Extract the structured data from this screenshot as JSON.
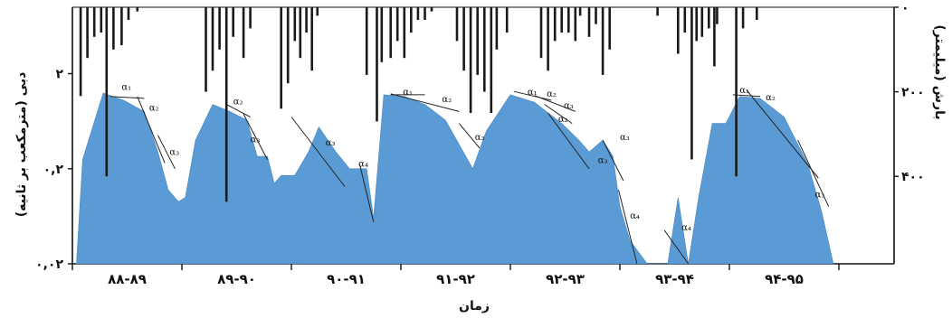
{
  "chart_data": {
    "type": "area",
    "x_axis": {
      "title": "زمان",
      "periods": [
        "۸۸-۸۹",
        "۸۹-۹۰",
        "۹۰-۹۱",
        "۹۱-۹۲",
        "۹۲-۹۳",
        "۹۳-۹۴",
        "۹۴-۹۵"
      ]
    },
    "y_left": {
      "title": "دبی (مترمکعب بر ثانیه)",
      "scale": "log",
      "ticks": [
        "۰,۰۲",
        "۰,۲",
        "۲"
      ],
      "tick_values": [
        0.02,
        0.2,
        2
      ],
      "range": [
        0.02,
        10
      ]
    },
    "y_right": {
      "title": "بارش (میلیمتر)",
      "inverted": true,
      "ticks": [
        "۰",
        "۲۰۰",
        "۴۰۰"
      ],
      "tick_values": [
        0,
        200,
        400
      ],
      "range": [
        0,
        600
      ]
    },
    "series": [
      {
        "kind": "discharge",
        "color": "#5b9bd5",
        "points": [
          [
            0.06,
            0.018
          ],
          [
            0.15,
            0.25
          ],
          [
            0.45,
            1.25
          ],
          [
            0.75,
            1.05
          ],
          [
            1.05,
            0.8
          ],
          [
            1.25,
            0.3
          ],
          [
            1.4,
            0.12
          ],
          [
            1.55,
            0.09
          ],
          [
            1.65,
            0.1
          ],
          [
            1.8,
            0.4
          ],
          [
            2.05,
            0.95
          ],
          [
            2.3,
            0.8
          ],
          [
            2.55,
            0.65
          ],
          [
            2.7,
            0.27
          ],
          [
            2.85,
            0.27
          ],
          [
            2.95,
            0.14
          ],
          [
            3.05,
            0.17
          ],
          [
            3.25,
            0.17
          ],
          [
            3.45,
            0.3
          ],
          [
            3.6,
            0.55
          ],
          [
            3.85,
            0.3
          ],
          [
            4.05,
            0.2
          ],
          [
            4.2,
            0.2
          ],
          [
            4.3,
            0.2
          ],
          [
            4.4,
            0.06
          ],
          [
            4.55,
            1.2
          ],
          [
            4.85,
            1.15
          ],
          [
            5.15,
            0.95
          ],
          [
            5.45,
            0.65
          ],
          [
            5.85,
            0.2
          ],
          [
            6.05,
            0.5
          ],
          [
            6.4,
            1.2
          ],
          [
            6.75,
            1.0
          ],
          [
            7.15,
            0.6
          ],
          [
            7.4,
            0.4
          ],
          [
            7.55,
            0.3
          ],
          [
            7.75,
            0.4
          ],
          [
            7.9,
            0.27
          ],
          [
            8.0,
            0.08
          ],
          [
            8.15,
            0.035
          ],
          [
            8.4,
            0.018
          ],
          [
            8.7,
            0.018
          ],
          [
            8.85,
            0.1
          ],
          [
            9.0,
            0.018
          ],
          [
            9.15,
            0.1
          ],
          [
            9.35,
            0.6
          ],
          [
            9.55,
            0.6
          ],
          [
            9.75,
            1.15
          ],
          [
            10.05,
            1.1
          ],
          [
            10.4,
            0.7
          ],
          [
            10.75,
            0.22
          ],
          [
            10.95,
            0.07
          ],
          [
            11.12,
            0.018
          ]
        ]
      },
      {
        "kind": "precipitation",
        "color": "#1a1a1a",
        "bars": [
          [
            0.12,
            210
          ],
          [
            0.22,
            120
          ],
          [
            0.32,
            70
          ],
          [
            0.42,
            60
          ],
          [
            0.5,
            400
          ],
          [
            0.6,
            100
          ],
          [
            0.72,
            90
          ],
          [
            0.82,
            30
          ],
          [
            0.95,
            10
          ],
          [
            1.95,
            200
          ],
          [
            2.05,
            150
          ],
          [
            2.15,
            100
          ],
          [
            2.25,
            460
          ],
          [
            2.35,
            70
          ],
          [
            2.5,
            120
          ],
          [
            2.6,
            50
          ],
          [
            3.05,
            240
          ],
          [
            3.15,
            180
          ],
          [
            3.25,
            80
          ],
          [
            3.33,
            120
          ],
          [
            3.42,
            60
          ],
          [
            3.5,
            150
          ],
          [
            3.58,
            20
          ],
          [
            4.3,
            160
          ],
          [
            4.45,
            270
          ],
          [
            4.52,
            130
          ],
          [
            4.65,
            120
          ],
          [
            4.75,
            80
          ],
          [
            4.85,
            120
          ],
          [
            4.95,
            60
          ],
          [
            5.05,
            30
          ],
          [
            5.15,
            30
          ],
          [
            5.25,
            10
          ],
          [
            5.62,
            80
          ],
          [
            5.72,
            150
          ],
          [
            5.82,
            250
          ],
          [
            5.92,
            160
          ],
          [
            6.02,
            200
          ],
          [
            6.12,
            250
          ],
          [
            6.2,
            100
          ],
          [
            6.35,
            60
          ],
          [
            6.85,
            120
          ],
          [
            6.95,
            150
          ],
          [
            7.05,
            80
          ],
          [
            7.15,
            60
          ],
          [
            7.25,
            60
          ],
          [
            7.35,
            80
          ],
          [
            7.42,
            20
          ],
          [
            7.55,
            70
          ],
          [
            7.65,
            40
          ],
          [
            7.75,
            160
          ],
          [
            7.85,
            100
          ],
          [
            8.55,
            20
          ],
          [
            8.85,
            110
          ],
          [
            8.95,
            60
          ],
          [
            9.05,
            360
          ],
          [
            9.12,
            80
          ],
          [
            9.2,
            70
          ],
          [
            9.3,
            50
          ],
          [
            9.38,
            140
          ],
          [
            9.42,
            40
          ],
          [
            9.7,
            400
          ],
          [
            9.8,
            50
          ],
          [
            10.0,
            30
          ]
        ]
      }
    ],
    "annotations": [
      {
        "text": "α₁",
        "x": 0.72,
        "y": 1.35
      },
      {
        "text": "α₂",
        "x": 1.12,
        "y": 0.82
      },
      {
        "text": "α₃",
        "x": 1.42,
        "y": 0.28
      },
      {
        "text": "α₂",
        "x": 2.35,
        "y": 0.95
      },
      {
        "text": "α₃",
        "x": 2.6,
        "y": 0.38
      },
      {
        "text": "α₃",
        "x": 3.7,
        "y": 0.35
      },
      {
        "text": "α₄",
        "x": 4.18,
        "y": 0.21
      },
      {
        "text": "α₁",
        "x": 4.83,
        "y": 1.2
      },
      {
        "text": "α₂",
        "x": 5.4,
        "y": 1.0
      },
      {
        "text": "α₃",
        "x": 5.88,
        "y": 0.4
      },
      {
        "text": "α₁",
        "x": 6.65,
        "y": 1.2
      },
      {
        "text": "α₂",
        "x": 6.93,
        "y": 1.15
      },
      {
        "text": "α₃",
        "x": 7.18,
        "y": 0.86
      },
      {
        "text": "α₂",
        "x": 7.1,
        "y": 0.62
      },
      {
        "text": "α₃",
        "x": 7.68,
        "y": 0.23
      },
      {
        "text": "α₃",
        "x": 8.0,
        "y": 0.4
      },
      {
        "text": "α₄",
        "x": 8.15,
        "y": 0.06
      },
      {
        "text": "α₄",
        "x": 8.9,
        "y": 0.045
      },
      {
        "text": "α₁",
        "x": 9.75,
        "y": 1.25
      },
      {
        "text": "α₂",
        "x": 10.13,
        "y": 1.05
      },
      {
        "text": "α₃",
        "x": 10.85,
        "y": 0.1
      }
    ],
    "trend_lines": [
      [
        [
          0.55,
          1.15
        ],
        [
          1.05,
          1.1
        ]
      ],
      [
        [
          0.95,
          1.15
        ],
        [
          1.35,
          0.23
        ]
      ],
      [
        [
          1.25,
          0.45
        ],
        [
          1.5,
          0.2
        ]
      ],
      [
        [
          2.25,
          0.95
        ],
        [
          2.6,
          0.7
        ]
      ],
      [
        [
          2.5,
          0.75
        ],
        [
          2.85,
          0.25
        ]
      ],
      [
        [
          3.2,
          0.7
        ],
        [
          3.98,
          0.13
        ]
      ],
      [
        [
          4.2,
          0.22
        ],
        [
          4.4,
          0.055
        ]
      ],
      [
        [
          4.65,
          1.2
        ],
        [
          5.15,
          1.2
        ]
      ],
      [
        [
          4.65,
          1.23
        ],
        [
          5.65,
          0.8
        ]
      ],
      [
        [
          5.65,
          0.6
        ],
        [
          5.95,
          0.33
        ]
      ],
      [
        [
          6.45,
          1.3
        ],
        [
          7.0,
          1.05
        ]
      ],
      [
        [
          6.75,
          1.18
        ],
        [
          7.35,
          0.8
        ]
      ],
      [
        [
          6.9,
          0.95
        ],
        [
          7.3,
          0.6
        ]
      ],
      [
        [
          6.95,
          0.77
        ],
        [
          7.55,
          0.2
        ]
      ],
      [
        [
          7.75,
          0.4
        ],
        [
          8.05,
          0.15
        ]
      ],
      [
        [
          7.98,
          0.12
        ],
        [
          8.25,
          0.018
        ]
      ],
      [
        [
          8.65,
          0.045
        ],
        [
          9.0,
          0.018
        ]
      ],
      [
        [
          9.65,
          1.2
        ],
        [
          10.05,
          1.15
        ]
      ],
      [
        [
          9.85,
          1.35
        ],
        [
          10.9,
          0.16
        ]
      ],
      [
        [
          10.6,
          0.4
        ],
        [
          11.05,
          0.08
        ]
      ]
    ]
  }
}
